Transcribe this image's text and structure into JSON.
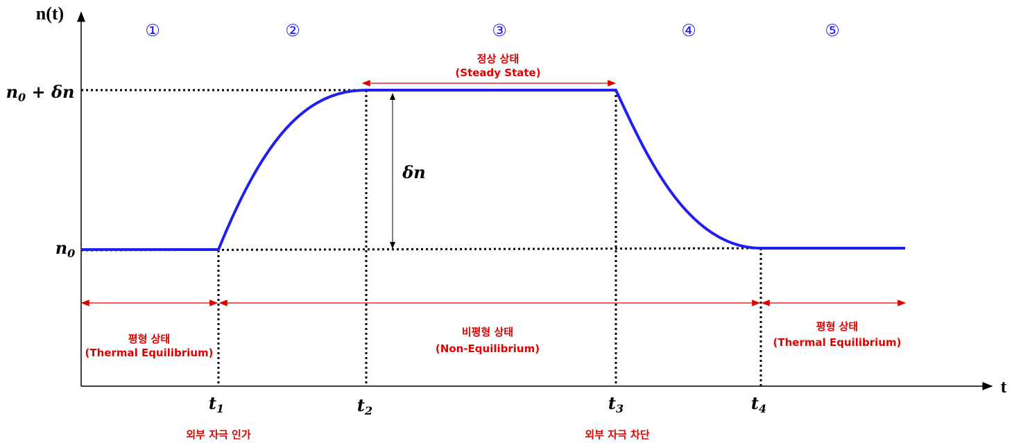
{
  "axes": {
    "y_label": "n(t)",
    "x_label": "t"
  },
  "regions": [
    "①",
    "②",
    "③",
    "④",
    "⑤"
  ],
  "levels": {
    "upper": {
      "base": "n",
      "sub": "0",
      "rest": " + δn"
    },
    "lower": {
      "base": "n",
      "sub": "0"
    }
  },
  "delta_label": "δn",
  "steady_state": {
    "korean": "정상 상태",
    "english": "(Steady State)"
  },
  "phases": [
    {
      "korean": "평형 상태",
      "english": "(Thermal Equilibrium)"
    },
    {
      "korean": "비평형 상태",
      "english": "(Non-Equilibrium)"
    },
    {
      "korean": "평형 상태",
      "english": "(Thermal Equilibrium)"
    }
  ],
  "times": [
    {
      "base": "t",
      "sub": "1"
    },
    {
      "base": "t",
      "sub": "2"
    },
    {
      "base": "t",
      "sub": "3"
    },
    {
      "base": "t",
      "sub": "4"
    }
  ],
  "events": [
    "외부 자극 인가",
    "외부 자극 차단"
  ]
}
